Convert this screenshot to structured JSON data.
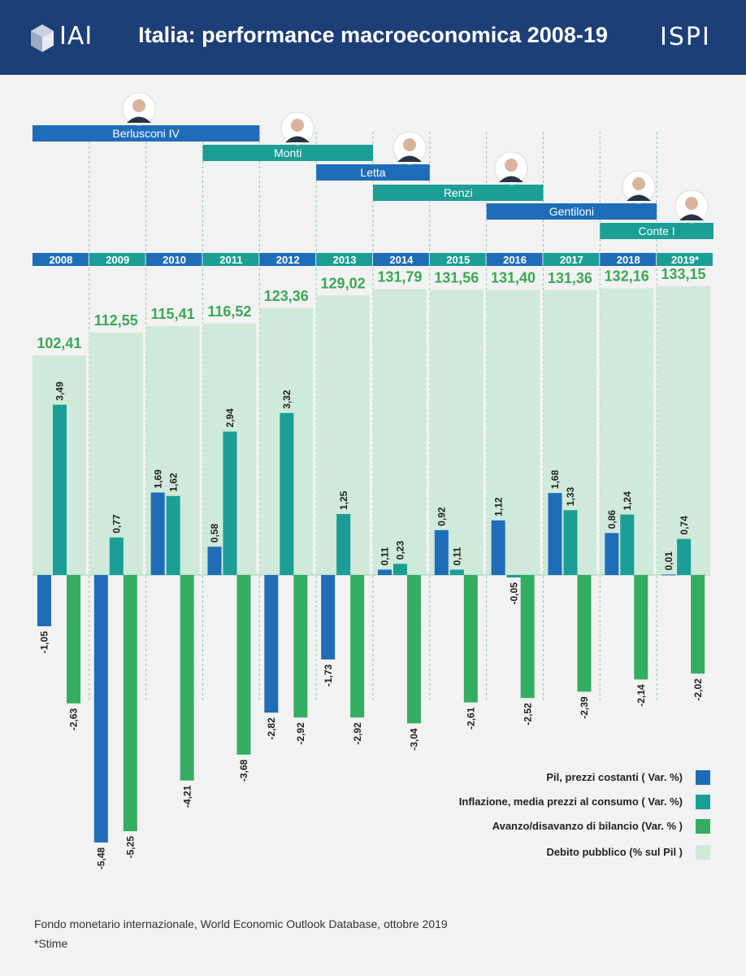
{
  "header": {
    "title": "Italia: performance macroeconomica 2008-19",
    "logo_left": "IAI",
    "logo_right": "ISPI"
  },
  "colors": {
    "header_bg": "#1d3f78",
    "pil": "#1f6db8",
    "inflazione": "#1b9e96",
    "avanzo": "#34ad62",
    "debito": "#cfe9da",
    "debito_label": "#3aa856",
    "gov_blue": "#1f6db8",
    "gov_teal": "#1b9e96"
  },
  "governments": [
    {
      "name": "Berlusconi IV",
      "start": 0,
      "end": 4,
      "row": 0,
      "color": "blue",
      "portrait": "berlusconi-portrait-icon"
    },
    {
      "name": "Monti",
      "start": 3,
      "end": 6,
      "row": 1,
      "color": "teal",
      "portrait": "monti-portrait-icon"
    },
    {
      "name": "Letta",
      "start": 5,
      "end": 7,
      "row": 2,
      "color": "blue",
      "portrait": "letta-portrait-icon"
    },
    {
      "name": "Renzi",
      "start": 6,
      "end": 9,
      "row": 3,
      "color": "teal",
      "portrait": "renzi-portrait-icon"
    },
    {
      "name": "Gentiloni",
      "start": 8,
      "end": 11,
      "row": 4,
      "color": "blue",
      "portrait": "gentiloni-portrait-icon"
    },
    {
      "name": "Conte I",
      "start": 10,
      "end": 12,
      "row": 5,
      "color": "teal",
      "portrait": "conte-portrait-icon"
    }
  ],
  "chart_data": {
    "type": "bar",
    "categories": [
      "2008",
      "2009",
      "2010",
      "2011",
      "2012",
      "2013",
      "2014",
      "2015",
      "2016",
      "2017",
      "2018",
      "2019*"
    ],
    "series": [
      {
        "name": "Pil, prezzi costanti  ( Var. %)",
        "key": "pil",
        "values": [
          -1.05,
          -5.48,
          1.69,
          0.58,
          -2.82,
          -1.73,
          0.11,
          0.92,
          1.12,
          1.68,
          0.86,
          0.01
        ],
        "labels": [
          "-1,05",
          "-5,48",
          "1,69",
          "0,58",
          "-2,82",
          "-1,73",
          "0,11",
          "0,92",
          "1,12",
          "1,68",
          "0,86",
          "0,01"
        ]
      },
      {
        "name": "Inflazione, media prezzi al consumo ( Var. %)",
        "key": "inflazione",
        "values": [
          3.49,
          0.77,
          1.62,
          2.94,
          3.32,
          1.25,
          0.23,
          0.11,
          -0.05,
          1.33,
          1.24,
          0.74
        ],
        "labels": [
          "3,49",
          "0,77",
          "1,62",
          "2,94",
          "3,32",
          "1,25",
          "0,23",
          "0,11",
          "-0,05",
          "1,33",
          "1,24",
          "0,74"
        ]
      },
      {
        "name": "Avanzo/disavanzo di bilancio (Var. % )",
        "key": "avanzo",
        "values": [
          -2.63,
          -5.25,
          -4.21,
          -3.68,
          -2.92,
          -2.92,
          -3.04,
          -2.61,
          -2.52,
          -2.39,
          -2.14,
          -2.02
        ],
        "labels": [
          "-2,63",
          "-5,25",
          "-4,21",
          "-3,68",
          "-2,92",
          "-2,92",
          "-3,04",
          "-2,61",
          "-2,52",
          "-2,39",
          "-2,14",
          "-2,02"
        ]
      },
      {
        "name": "Debito pubblico (% sul Pil )",
        "key": "debito",
        "values": [
          102.41,
          112.55,
          115.41,
          116.52,
          123.36,
          129.02,
          131.79,
          131.56,
          131.4,
          131.36,
          132.16,
          133.15
        ],
        "labels": [
          "102,41",
          "112,55",
          "115,41",
          "116,52",
          "123,36",
          "129,02",
          "131,79",
          "131,56",
          "131,40",
          "131,36",
          "132,16",
          "133,15"
        ]
      }
    ],
    "legend_position": "bottom-right"
  },
  "footer": {
    "source": "Fondo monetario internazionale, World Economic Outlook Database, ottobre 2019",
    "note": "*Stime"
  }
}
